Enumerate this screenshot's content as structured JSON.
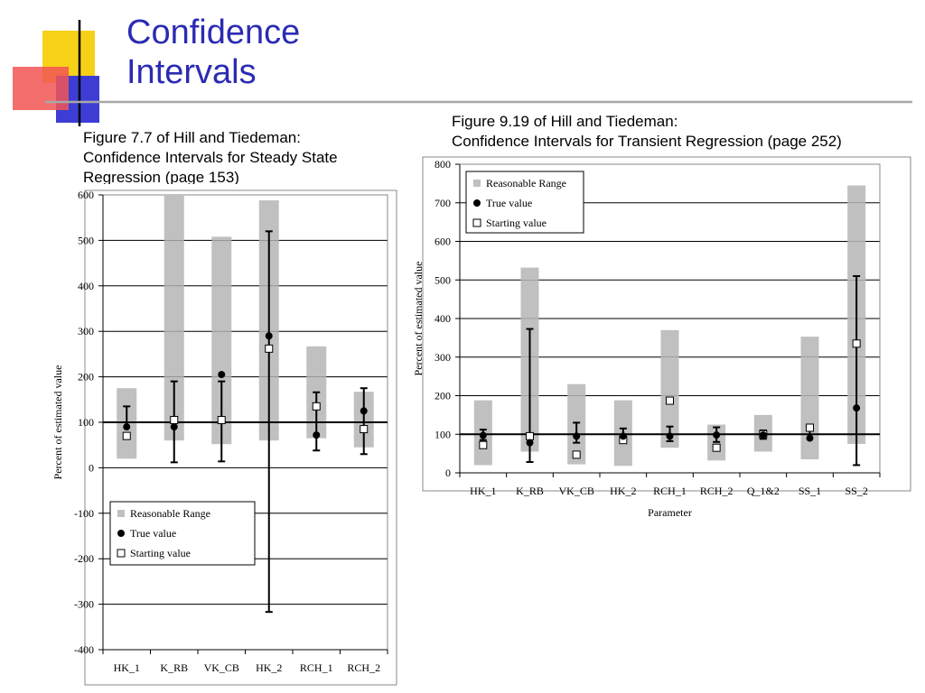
{
  "title": {
    "line1": "Confidence",
    "line2": "Intervals"
  },
  "captions": {
    "left": [
      "Figure 7.7 of Hill and Tiedeman:",
      "Confidence Intervals for Steady State",
      "Regression (page 153)"
    ],
    "right": [
      "Figure 9.19 of Hill and Tiedeman:",
      "Confidence Intervals for Transient Regression (page 252)"
    ]
  },
  "colors": {
    "title": "#2b2bb3",
    "range_bar": "#c0c0c0",
    "deco_yellow": "#f7d117",
    "deco_red": "#f25555",
    "deco_blue": "#3d3dd6"
  },
  "chart_data": [
    {
      "type": "scatter",
      "title": "",
      "xlabel": "",
      "ylabel": "Percent of estimated value",
      "ylim": [
        -400,
        600
      ],
      "yticks": [
        600,
        500,
        400,
        300,
        200,
        100,
        0,
        -100,
        -200,
        -300,
        -400
      ],
      "grid": true,
      "legend": "bottom-left",
      "categories": [
        "HK_1",
        "K_RB",
        "VK_CB",
        "HK_2",
        "RCH_1",
        "RCH_2"
      ],
      "series": [
        {
          "name": "Reasonable Range",
          "kind": "range",
          "values": [
            [
              20,
              175
            ],
            [
              60,
              600
            ],
            [
              52,
              508
            ],
            [
              60,
              588
            ],
            [
              65,
              267
            ],
            [
              45,
              167
            ]
          ]
        },
        {
          "name": "True value",
          "kind": "point",
          "values": [
            90,
            90,
            205,
            290,
            72,
            125
          ]
        },
        {
          "name": "Starting value",
          "kind": "point",
          "values": [
            70,
            105,
            105,
            262,
            135,
            85
          ]
        }
      ],
      "error_bars": [
        [
          null,
          135
        ],
        [
          12,
          190
        ],
        [
          14,
          190
        ],
        [
          -317,
          520
        ],
        [
          38,
          166
        ],
        [
          30,
          175
        ]
      ],
      "reference_line": 100
    },
    {
      "type": "scatter",
      "title": "",
      "xlabel": "Parameter",
      "ylabel": "Percent of estimated value",
      "ylim": [
        0,
        800
      ],
      "yticks": [
        800,
        700,
        600,
        500,
        400,
        300,
        200,
        100,
        0
      ],
      "grid": true,
      "legend": "top-left",
      "categories": [
        "HK_1",
        "K_RB",
        "VK_CB",
        "HK_2",
        "RCH_1",
        "RCH_2",
        "Q_1&2",
        "SS_1",
        "SS_2"
      ],
      "series": [
        {
          "name": "Reasonable Range",
          "kind": "range",
          "values": [
            [
              20,
              188
            ],
            [
              55,
              532
            ],
            [
              22,
              230
            ],
            [
              18,
              188
            ],
            [
              65,
              370
            ],
            [
              32,
              125
            ],
            [
              55,
              150
            ],
            [
              35,
              353
            ],
            [
              75,
              745
            ]
          ]
        },
        {
          "name": "True value",
          "kind": "point",
          "values": [
            97,
            78,
            95,
            95,
            95,
            98,
            98,
            90,
            168
          ]
        },
        {
          "name": "Starting value",
          "kind": "point",
          "values": [
            72,
            95,
            47,
            85,
            187,
            65,
            100,
            117,
            335
          ]
        }
      ],
      "error_bars": [
        [
          85,
          112
        ],
        [
          28,
          373
        ],
        [
          78,
          130
        ],
        [
          80,
          115
        ],
        [
          82,
          120
        ],
        [
          80,
          118
        ],
        [
          88,
          110
        ],
        [
          null,
          120
        ],
        [
          20,
          510
        ]
      ],
      "reference_line": 100
    }
  ]
}
